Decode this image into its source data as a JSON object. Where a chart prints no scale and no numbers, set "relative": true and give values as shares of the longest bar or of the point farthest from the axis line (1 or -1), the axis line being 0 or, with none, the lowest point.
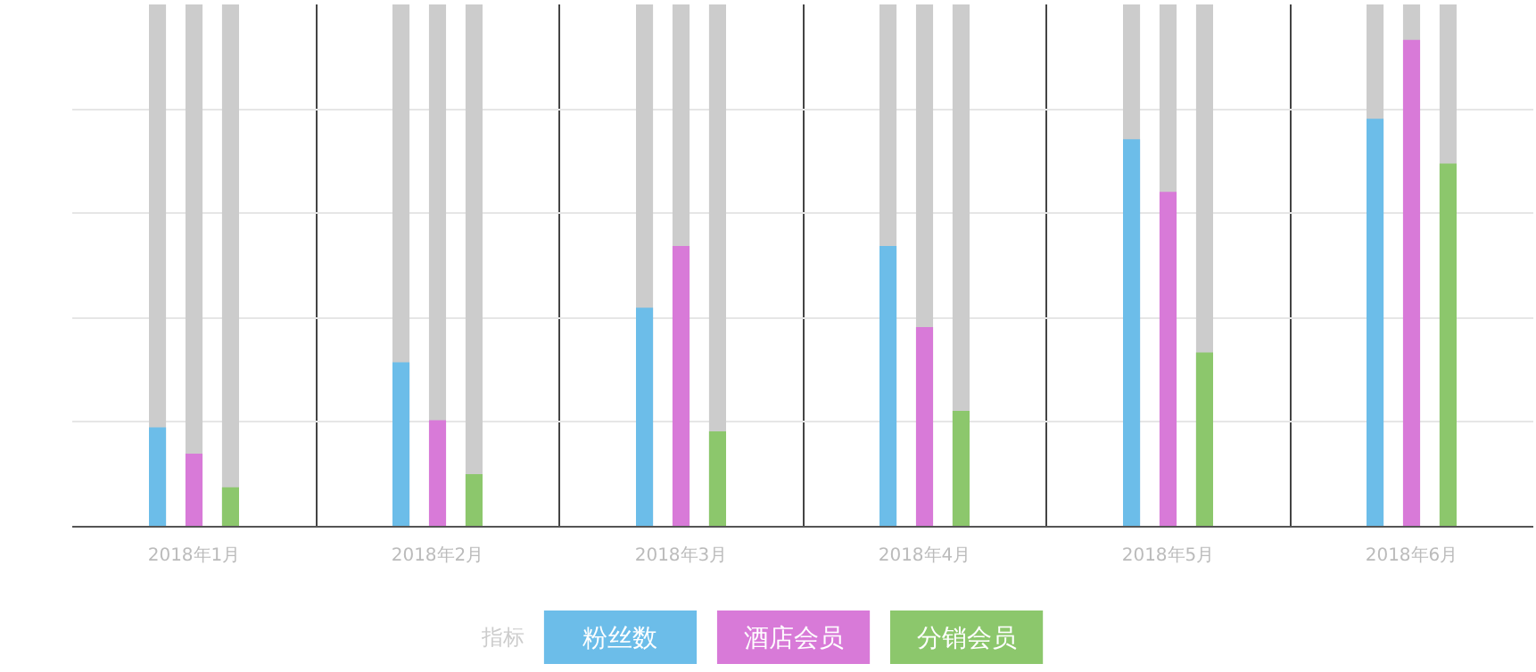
{
  "chart_data": {
    "type": "bar",
    "relative": true,
    "legend": "bottom",
    "legend_title": "指标",
    "grid": true,
    "categories": [
      "2018年1月",
      "2018年2月",
      "2018年3月",
      "2018年4月",
      "2018年5月",
      "2018年6月"
    ],
    "series": [
      {
        "name": "粉丝数",
        "color": "#6cbde9",
        "values": [
          0.204,
          0.338,
          0.45,
          0.577,
          0.796,
          0.838
        ]
      },
      {
        "name": "酒店会员",
        "color": "#d87ad8",
        "values": [
          0.15,
          0.219,
          0.577,
          0.41,
          0.688,
          1
        ]
      },
      {
        "name": "分销会员",
        "color": "#8cc76c",
        "values": [
          0.081,
          0.108,
          0.196,
          0.238,
          0.358,
          0.746
        ]
      }
    ]
  }
}
